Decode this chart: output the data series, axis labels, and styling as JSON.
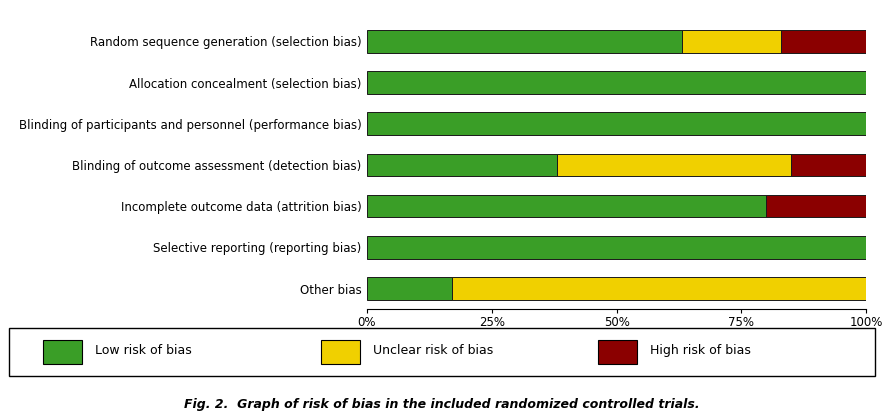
{
  "categories": [
    "Other bias",
    "Selective reporting (reporting bias)",
    "Incomplete outcome data (attrition bias)",
    "Blinding of outcome assessment (detection bias)",
    "Blinding of participants and personnel (performance bias)",
    "Allocation concealment (selection bias)",
    "Random sequence generation (selection bias)"
  ],
  "low_risk": [
    17,
    100,
    80,
    38,
    100,
    100,
    63
  ],
  "unclear_risk": [
    83,
    0,
    0,
    47,
    0,
    0,
    20
  ],
  "high_risk": [
    0,
    0,
    20,
    15,
    0,
    0,
    17
  ],
  "color_low": "#3a9e27",
  "color_unclear": "#f0d000",
  "color_high": "#8b0000",
  "color_border": "#1a1a1a",
  "title": "Fig. 2.  Graph of risk of bias in the included randomized controlled trials.",
  "legend_low": "Low risk of bias",
  "legend_unclear": "Unclear risk of bias",
  "legend_high": "High risk of bias",
  "xticks": [
    0,
    25,
    50,
    75,
    100
  ],
  "xtick_labels": [
    "0%",
    "25%",
    "50%",
    "75%",
    "100%"
  ]
}
